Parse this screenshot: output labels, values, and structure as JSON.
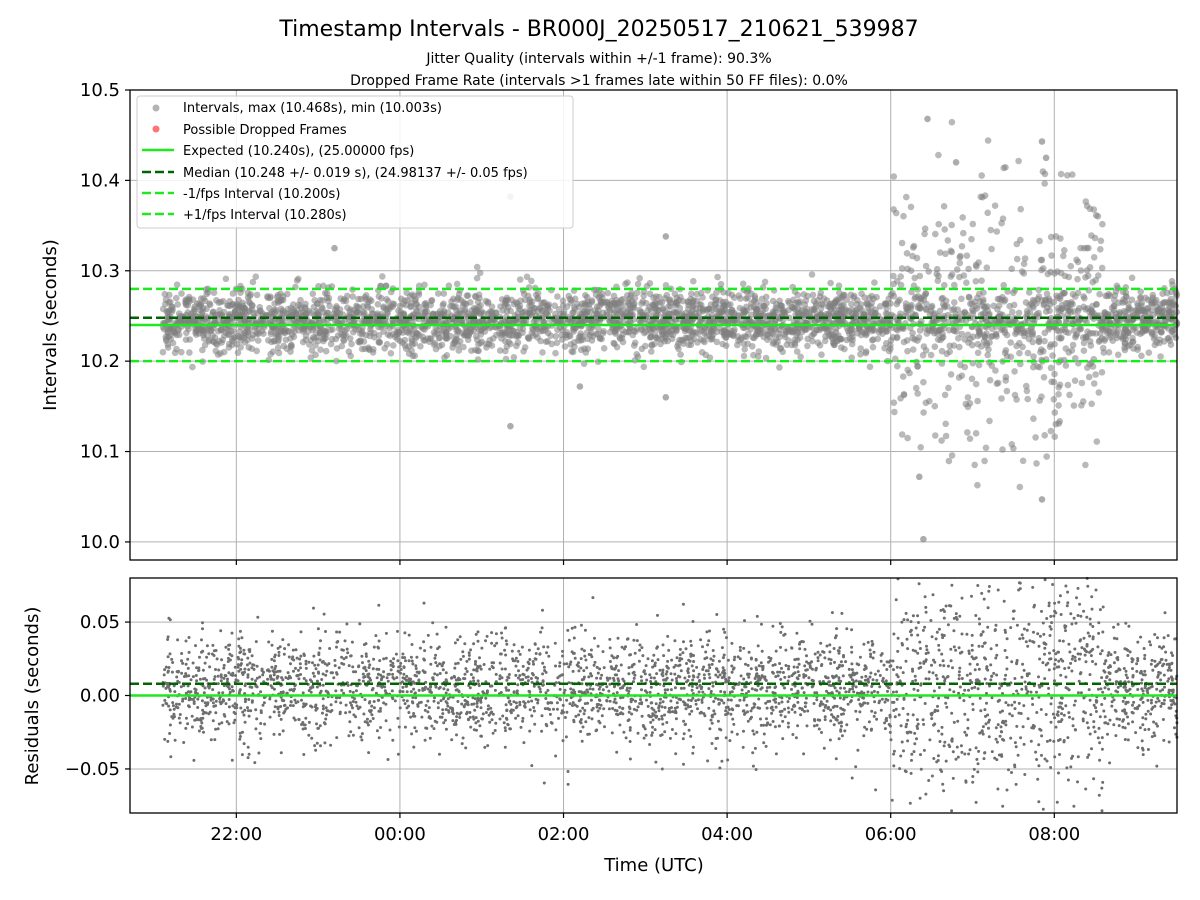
{
  "chart_data": [
    {
      "type": "scatter",
      "title": "Timestamp Intervals - BR000J_20250517_210621_539987",
      "subtitle_lines": [
        "Jitter Quality (intervals within +/-1 frame): 90.3%",
        "Dropped Frame Rate (intervals >1 frames late within 50 FF files): 0.0%"
      ],
      "ylabel": "Intervals (seconds)",
      "xlim_hours": [
        20.7,
        33.5
      ],
      "ylim": [
        9.98,
        10.5
      ],
      "yticks": [
        10.0,
        10.1,
        10.2,
        10.3,
        10.4,
        10.5
      ],
      "ytick_labels": [
        "10.0",
        "10.1",
        "10.2",
        "10.3",
        "10.4",
        "10.5"
      ],
      "grid": true,
      "legend_position": "upper-left",
      "legend": [
        {
          "label": "Intervals, max (10.468s), min (10.003s)",
          "kind": "marker",
          "color": "#808080"
        },
        {
          "label": "Possible Dropped Frames",
          "kind": "marker",
          "color": "#ff0000"
        },
        {
          "label": "Expected (10.240s), (25.00000 fps)",
          "kind": "solid",
          "color": "#1ee81e"
        },
        {
          "label": "Median (10.248 +/- 0.019 s), (24.98137 +/- 0.05 fps)",
          "kind": "dashed",
          "color": "#006400"
        },
        {
          "label": "-1/fps Interval (10.200s)",
          "kind": "dashed",
          "color": "#1ee81e"
        },
        {
          "label": "+1/fps Interval (10.280s)",
          "kind": "dashed",
          "color": "#1ee81e"
        }
      ],
      "reference_lines": {
        "expected": 10.24,
        "median": 10.248,
        "lower": 10.2,
        "upper": 10.28
      },
      "series": [
        {
          "time_range_hours": [
            21.1,
            33.6
          ],
          "central_value": 10.245,
          "normal_spread_sd": 0.017,
          "disturbed_period_hours": [
            30.0,
            32.6
          ],
          "disturbed_spread_sd": 0.075,
          "sample_outliers": [
            {
              "x_hour": 23.2,
              "y": 10.325
            },
            {
              "x_hour": 25.35,
              "y": 10.382
            },
            {
              "x_hour": 25.35,
              "y": 10.128
            },
            {
              "x_hour": 26.2,
              "y": 10.172
            },
            {
              "x_hour": 27.25,
              "y": 10.338
            },
            {
              "x_hour": 27.25,
              "y": 10.16
            },
            {
              "x_hour": 30.45,
              "y": 10.468
            },
            {
              "x_hour": 30.4,
              "y": 10.003
            },
            {
              "x_hour": 31.85,
              "y": 10.443
            },
            {
              "x_hour": 31.9,
              "y": 10.425
            },
            {
              "x_hour": 31.85,
              "y": 10.047
            },
            {
              "x_hour": 30.35,
              "y": 10.072
            },
            {
              "x_hour": 30.8,
              "y": 10.42
            }
          ]
        }
      ]
    },
    {
      "type": "scatter",
      "ylabel": "Residuals (seconds)",
      "xlabel": "Time (UTC)",
      "xlim_hours": [
        20.7,
        33.5
      ],
      "ylim": [
        -0.08,
        0.08
      ],
      "yticks": [
        -0.05,
        0.0,
        0.05
      ],
      "ytick_labels": [
        "−0.05",
        "0.00",
        "0.05"
      ],
      "xtick_hours": [
        22,
        24,
        26,
        28,
        30,
        32
      ],
      "xtick_labels": [
        "22:00",
        "00:00",
        "02:00",
        "04:00",
        "06:00",
        "08:00"
      ],
      "grid": true,
      "reference_lines": {
        "zero": 0.0,
        "median_offset": 0.008
      },
      "series": [
        {
          "time_range_hours": [
            21.1,
            33.6
          ],
          "central_value": 0.005,
          "normal_spread_sd": 0.019,
          "disturbed_period_hours": [
            30.0,
            32.6
          ],
          "disturbed_spread_sd": 0.04
        }
      ]
    }
  ],
  "colors": {
    "points": "#808080",
    "expected": "#1ee81e",
    "median": "#006400",
    "grid": "#b0b0b0"
  }
}
